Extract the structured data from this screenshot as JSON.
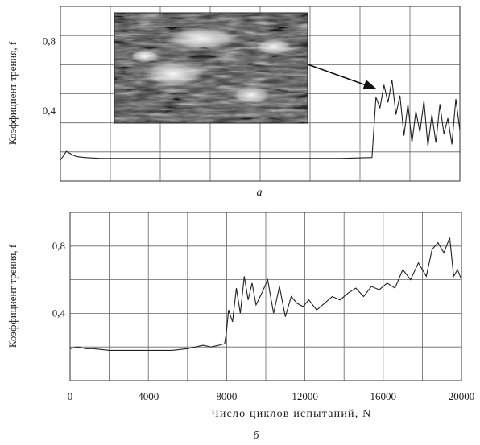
{
  "chart_data": [
    {
      "type": "line",
      "panel_label": "а",
      "ylabel": "Коэффициент трения, f",
      "xlabel": "",
      "xlim": [
        0,
        20000
      ],
      "ylim": [
        0,
        1.0
      ],
      "y_ticks": [
        0.4,
        0.8
      ],
      "y_tick_labels": [
        "0,4",
        "0,8"
      ],
      "grid": true,
      "inset": "SEM micrograph of the worn surface, arrow pointing to onset of high-friction regime",
      "series": [
        {
          "color": "#222222",
          "x": [
            0,
            300,
            600,
            800,
            1200,
            2000,
            4000,
            6000,
            8000,
            10000,
            12000,
            14000,
            15600,
            15800,
            16000,
            16200,
            16400,
            16600,
            16800,
            17000,
            17200,
            17400,
            17600,
            17800,
            18000,
            18200,
            18400,
            18600,
            18800,
            19000,
            19200,
            19400,
            19600,
            19800,
            20000
          ],
          "y": [
            0.12,
            0.17,
            0.15,
            0.14,
            0.135,
            0.13,
            0.13,
            0.13,
            0.13,
            0.13,
            0.13,
            0.13,
            0.135,
            0.48,
            0.42,
            0.55,
            0.45,
            0.58,
            0.38,
            0.49,
            0.26,
            0.44,
            0.22,
            0.4,
            0.28,
            0.46,
            0.2,
            0.38,
            0.22,
            0.44,
            0.27,
            0.36,
            0.21,
            0.47,
            0.29
          ]
        }
      ]
    },
    {
      "type": "line",
      "panel_label": "б",
      "ylabel": "Коэффициент трения, f",
      "xlabel": "Число циклов испытаний, N",
      "xlim": [
        0,
        20000
      ],
      "ylim": [
        0,
        1.0
      ],
      "x_ticks": [
        0,
        4000,
        8000,
        12000,
        16000,
        20000
      ],
      "x_tick_labels": [
        "0",
        "4000",
        "8000",
        "12000",
        "16000",
        "20000"
      ],
      "y_ticks": [
        0.4,
        0.8
      ],
      "y_tick_labels": [
        "0,4",
        "0,8"
      ],
      "grid": true,
      "series": [
        {
          "color": "#222222",
          "x": [
            0,
            400,
            800,
            1200,
            2000,
            2800,
            3600,
            4400,
            5200,
            6000,
            6400,
            6800,
            7200,
            7600,
            7900,
            8000,
            8100,
            8300,
            8500,
            8700,
            8900,
            9100,
            9300,
            9500,
            9800,
            10100,
            10400,
            10700,
            11000,
            11300,
            11600,
            11900,
            12200,
            12600,
            13000,
            13400,
            13800,
            14200,
            14600,
            15000,
            15400,
            15800,
            16200,
            16600,
            17000,
            17400,
            17800,
            18200,
            18500,
            18800,
            19100,
            19400,
            19600,
            19800,
            20000
          ],
          "y": [
            0.19,
            0.2,
            0.19,
            0.19,
            0.18,
            0.18,
            0.18,
            0.18,
            0.18,
            0.19,
            0.2,
            0.21,
            0.2,
            0.21,
            0.22,
            0.3,
            0.42,
            0.35,
            0.55,
            0.4,
            0.62,
            0.48,
            0.58,
            0.45,
            0.52,
            0.6,
            0.4,
            0.56,
            0.38,
            0.5,
            0.46,
            0.44,
            0.48,
            0.42,
            0.46,
            0.5,
            0.48,
            0.52,
            0.55,
            0.5,
            0.56,
            0.54,
            0.58,
            0.55,
            0.66,
            0.6,
            0.7,
            0.62,
            0.78,
            0.82,
            0.76,
            0.85,
            0.62,
            0.66,
            0.6
          ]
        }
      ]
    }
  ]
}
